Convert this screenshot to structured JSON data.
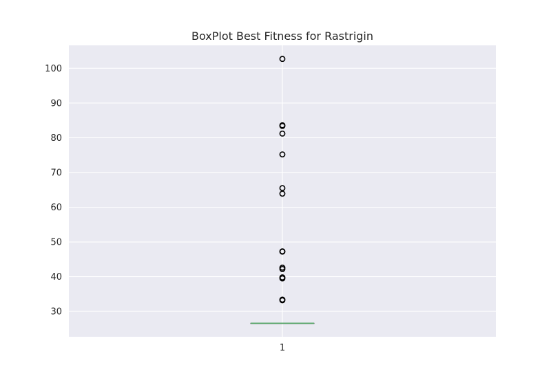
{
  "chart_data": {
    "type": "box",
    "title": "BoxPlot Best Fitness for Rastrigin",
    "xlabel": "",
    "ylabel": "",
    "categories": [
      "1"
    ],
    "yticks": [
      30,
      40,
      50,
      60,
      70,
      80,
      90,
      100
    ],
    "ylim": [
      22.7,
      106.6
    ],
    "grid": true,
    "boxes": [
      {
        "label": "1",
        "q1": 26.6,
        "median": 26.6,
        "q3": 26.6,
        "whisker_low": 26.6,
        "whisker_high": 26.6,
        "outliers": [
          102.7,
          83.6,
          83.4,
          81.2,
          75.2,
          65.5,
          63.9,
          47.3,
          47.2,
          42.6,
          42.2,
          39.8,
          39.5,
          33.4,
          33.2
        ]
      }
    ]
  },
  "colors": {
    "plot_background": "#eaeaf2",
    "grid": "#ffffff",
    "median": "#55a868",
    "outlier_edge": "#000000",
    "text": "#262626"
  }
}
